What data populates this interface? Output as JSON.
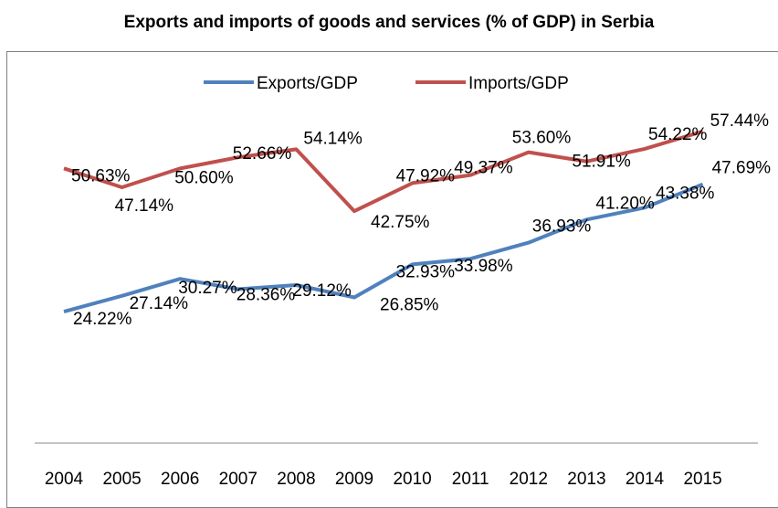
{
  "chart_data": {
    "type": "line",
    "title": "Exports and imports of goods and services (% of GDP) in Serbia",
    "xlabel": "",
    "ylabel": "",
    "x": [
      "2004",
      "2005",
      "2006",
      "2007",
      "2008",
      "2009",
      "2010",
      "2011",
      "2012",
      "2013",
      "2014",
      "2015"
    ],
    "ylim": [
      0,
      70
    ],
    "grid": false,
    "legend": "top",
    "series": [
      {
        "name": "Exports/GDP",
        "color": "#4f81bd",
        "values": [
          24.22,
          27.14,
          30.27,
          28.36,
          29.12,
          26.85,
          32.93,
          33.98,
          36.93,
          41.2,
          43.38,
          47.69
        ],
        "labels": [
          "24.22%",
          "27.14%",
          "30.27%",
          "28.36%",
          "29.12%",
          "26.85%",
          "32.93%",
          "33.98%",
          "36.93%",
          "41.20%",
          "43.38%",
          "47.69%"
        ]
      },
      {
        "name": "Imports/GDP",
        "color": "#c0504d",
        "values": [
          50.63,
          47.14,
          50.6,
          52.66,
          54.14,
          42.75,
          47.92,
          49.37,
          53.6,
          51.91,
          54.22,
          57.44
        ],
        "labels": [
          "50.63%",
          "47.14%",
          "50.60%",
          "52.66%",
          "54.14%",
          "42.75%",
          "47.92%",
          "49.37%",
          "53.60%",
          "51.91%",
          "54.22%",
          "57.44%"
        ]
      }
    ]
  }
}
